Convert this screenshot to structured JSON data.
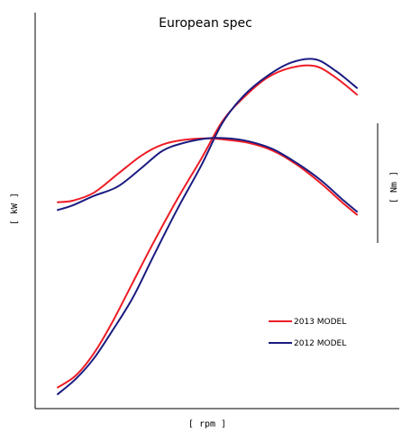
{
  "chart_data": {
    "type": "line",
    "title": "European spec",
    "xlabel": "[ rpm ]",
    "ylabel": "[ kW ]",
    "y2label": "[ Nm ]",
    "xlim": [
      0,
      100
    ],
    "ylim": [
      0,
      100
    ],
    "y2lim": [
      0,
      100
    ],
    "grid": false,
    "legend": "bottom-right",
    "series": [
      {
        "name": "2013 MODEL",
        "axis": "left",
        "color": "#ee1c25",
        "x": [
          0,
          6,
          12,
          18,
          25,
          32,
          40,
          48,
          55,
          62,
          70,
          78,
          86,
          93,
          100
        ],
        "values": [
          2,
          5.5,
          12,
          21,
          33,
          45,
          58,
          70,
          81,
          88,
          94,
          97,
          97.5,
          94,
          89
        ]
      },
      {
        "name": "2012 MODEL",
        "axis": "left",
        "color": "#1b1c80",
        "x": [
          0,
          6,
          12,
          18,
          25,
          32,
          40,
          48,
          55,
          62,
          70,
          78,
          86,
          93,
          100
        ],
        "values": [
          0,
          4.5,
          10.5,
          18.5,
          28.5,
          41,
          55,
          68,
          80.5,
          88.5,
          94.5,
          98.5,
          99.5,
          96,
          91
        ]
      },
      {
        "name": "2013 MODEL",
        "axis": "right",
        "color": "#ee1c25",
        "x": [
          0,
          5,
          12,
          20,
          28,
          35,
          42,
          50,
          57,
          64,
          72,
          80,
          88,
          95,
          100
        ],
        "values": [
          50,
          50.5,
          53,
          59,
          65,
          68.5,
          70,
          70.5,
          70,
          69,
          66.5,
          62,
          56,
          50,
          46
        ]
      },
      {
        "name": "2012 MODEL",
        "axis": "right",
        "color": "#1b1c80",
        "x": [
          0,
          5,
          12,
          20,
          28,
          35,
          42,
          50,
          57,
          64,
          72,
          80,
          88,
          95,
          100
        ],
        "values": [
          47.5,
          49,
          52,
          55,
          61,
          66.5,
          69,
          70.5,
          70.5,
          69.5,
          67,
          62.5,
          57,
          51,
          47
        ]
      }
    ]
  },
  "legend": [
    {
      "label": "2013 MODEL",
      "color": "#ee1c25"
    },
    {
      "label": "2012 MODEL",
      "color": "#1b1c80"
    }
  ]
}
